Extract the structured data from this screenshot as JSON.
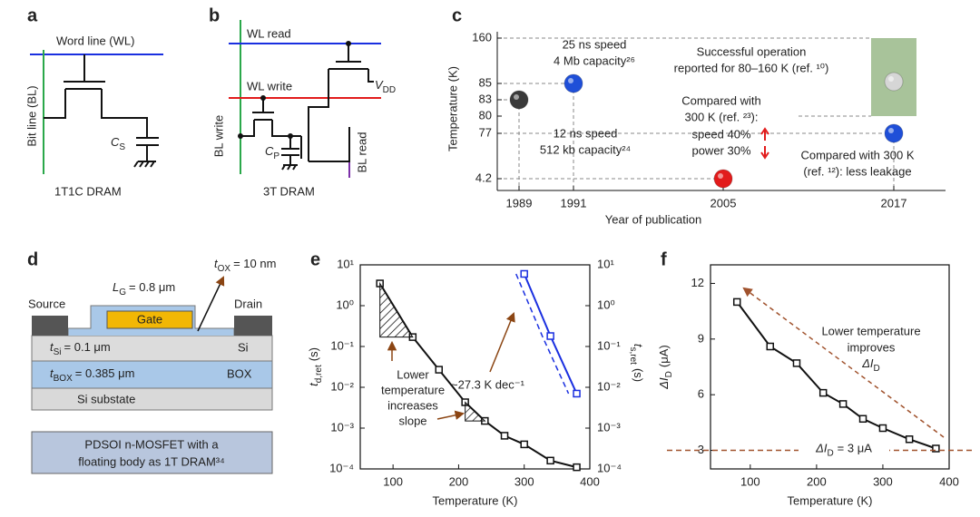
{
  "panel_a": {
    "label": "a",
    "word_line": "Word line (WL)",
    "bit_line": "Bit line (BL)",
    "capacitor": "C",
    "capacitor_sub": "S",
    "caption": "1T1C DRAM"
  },
  "panel_b": {
    "label": "b",
    "wl_read": "WL read",
    "wl_write": "WL write",
    "vdd": "V",
    "vdd_sub": "DD",
    "bl_write": "BL write",
    "bl_read": "BL read",
    "capacitor": "C",
    "capacitor_sub": "P",
    "caption": "3T DRAM"
  },
  "panel_d": {
    "label": "d",
    "source": "Source",
    "drain": "Drain",
    "gate": "Gate",
    "lg": {
      "base": "L",
      "sub": "G",
      "rest": "= 0.8 μm"
    },
    "tox": {
      "base": "t",
      "sub": "OX",
      "rest": "= 10 nm"
    },
    "tsi": {
      "base": "t",
      "sub": "Si",
      "rest": "= 0.1 μm"
    },
    "si": "Si",
    "tbox": {
      "base": "t",
      "sub": "BOX",
      "rest": "= 0.385 μm"
    },
    "box": "BOX",
    "substrate": "Si substate",
    "caption": [
      "PDSOI n-MOSFET with a",
      "floating body as 1T DRAM³⁴"
    ]
  },
  "chart_data": [
    {
      "label": "c",
      "type": "timeline",
      "ylabel": "Temperature (K)",
      "xlabel": "Year of publication",
      "categories": [
        1989,
        1991,
        2005,
        2017
      ],
      "yticks": [
        4.2,
        77,
        80,
        83,
        85,
        160
      ],
      "points": [
        {
          "x": 1989,
          "y": 83,
          "color": "#3a3a3a"
        },
        {
          "x": 1991,
          "y": 85,
          "color": "#1f4fd8"
        },
        {
          "x": 2005,
          "y": 4.2,
          "color": "#e21b1b"
        },
        {
          "x": 2017,
          "y": 77,
          "color": "#1f4fd8"
        },
        {
          "x": 2017,
          "y": 88,
          "color": "#d6d6d6"
        }
      ],
      "range": {
        "x": 2017,
        "low": 80,
        "high": 160,
        "color": "#a8c39a"
      },
      "annotations": [
        {
          "lines": [
            "25 ns speed",
            "4 Mb capacity²⁶"
          ]
        },
        {
          "lines": [
            "12 ns speed",
            "512 kb capacity²⁴"
          ]
        },
        {
          "lines": [
            "Successful operation",
            "reported for 80–160 K (ref. ¹⁰)"
          ]
        },
        {
          "lines": [
            "Compared with",
            "300 K (ref. ²³):",
            "speed 40%",
            "power 30%"
          ]
        },
        {
          "lines": [
            "Compared with 300 K",
            "(ref. ¹²): less leakage"
          ]
        }
      ]
    },
    {
      "label": "e",
      "type": "line",
      "log_y": true,
      "xlabel": "Temperature (K)",
      "ylabel": {
        "base": "t",
        "sub": "d,ret",
        "unit": "(s)"
      },
      "y2label": {
        "base": "t",
        "sub": "s,ret",
        "unit": "(s)"
      },
      "xlim": [
        50,
        400
      ],
      "xticks": [
        100,
        200,
        300,
        400
      ],
      "ylim": [
        0.0001,
        10
      ],
      "yticks": [
        {
          "value": 10,
          "label": "10¹"
        },
        {
          "value": 1,
          "label": "10⁰"
        },
        {
          "value": 0.1,
          "label": "10⁻¹"
        },
        {
          "value": 0.01,
          "label": "10⁻²"
        },
        {
          "value": 0.001,
          "label": "10⁻³"
        },
        {
          "value": 0.0001,
          "label": "10⁻⁴"
        }
      ],
      "y2lim": [
        0.0001,
        10
      ],
      "y2ticks": [
        {
          "value": 10,
          "label": "10¹"
        },
        {
          "value": 1,
          "label": "10⁰"
        },
        {
          "value": 0.1,
          "label": "10⁻¹"
        },
        {
          "value": 0.01,
          "label": "10⁻²"
        },
        {
          "value": 0.001,
          "label": "10⁻³"
        },
        {
          "value": 0.0001,
          "label": "10⁻⁴"
        }
      ],
      "y2color": "#1a2fe0",
      "series": [
        {
          "color": "#111111",
          "x": [
            80,
            130,
            170,
            210,
            240,
            270,
            300,
            340,
            380
          ],
          "values": [
            3.5,
            0.17,
            0.027,
            0.0043,
            0.0015,
            0.00065,
            0.0004,
            0.00016,
            0.00011
          ]
        },
        {
          "color": "#1a2fe0",
          "axis": "y2",
          "x": [
            300,
            340,
            380
          ],
          "values": [
            6,
            0.18,
            0.007
          ]
        }
      ],
      "annotations": {
        "slope": "~27.3 K dec⁻¹",
        "note": [
          "Lower",
          "temperature",
          "increases",
          "slope"
        ]
      }
    },
    {
      "label": "f",
      "type": "line",
      "xlabel": "Temperature (K)",
      "ylabel": {
        "base": "ΔI",
        "sub": "D",
        "unit": "(μA)"
      },
      "xlim": [
        40,
        400
      ],
      "xticks": [
        100,
        200,
        300,
        400
      ],
      "ylim": [
        2,
        13
      ],
      "yticks": [
        3,
        6,
        9,
        12
      ],
      "series": [
        {
          "color": "#111111",
          "x": [
            80,
            130,
            170,
            210,
            240,
            270,
            300,
            340,
            380
          ],
          "values": [
            11,
            8.6,
            7.7,
            6.1,
            5.5,
            4.7,
            4.2,
            3.6,
            3.1
          ]
        }
      ],
      "reference": {
        "value": 3,
        "color": "#a0522d",
        "label": {
          "base": "ΔI",
          "sub": "D",
          "rest": "= 3 μA"
        }
      },
      "note": {
        "line1": "Lower temperature",
        "line2": "improves",
        "line3": {
          "base": "ΔI",
          "sub": "D"
        }
      }
    }
  ]
}
